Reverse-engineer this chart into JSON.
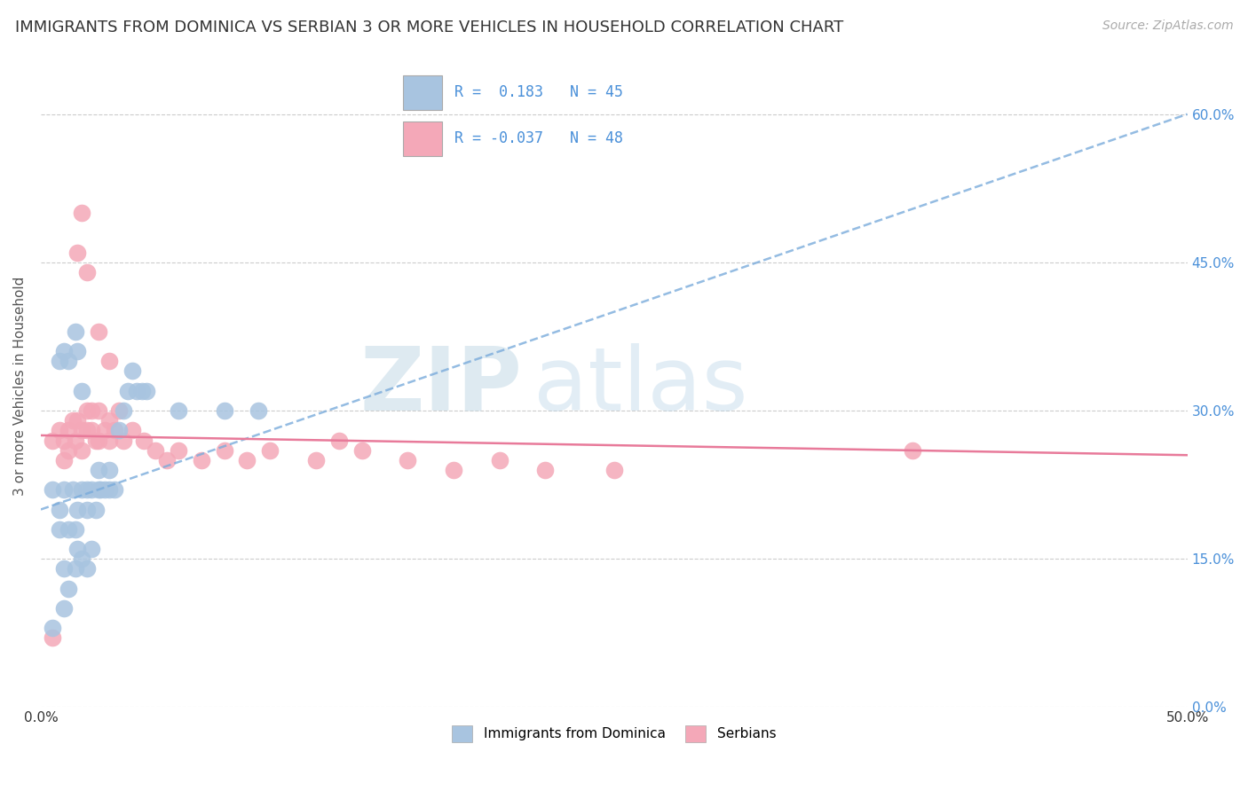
{
  "title": "IMMIGRANTS FROM DOMINICA VS SERBIAN 3 OR MORE VEHICLES IN HOUSEHOLD CORRELATION CHART",
  "source": "Source: ZipAtlas.com",
  "ylabel": "3 or more Vehicles in Household",
  "xmin": 0.0,
  "xmax": 0.5,
  "ymin": 0.0,
  "ymax": 0.65,
  "yticks": [
    0.0,
    0.15,
    0.3,
    0.45,
    0.6
  ],
  "ytick_labels_right": [
    "0.0%",
    "15.0%",
    "30.0%",
    "45.0%",
    "60.0%"
  ],
  "xticks": [
    0.0,
    0.5
  ],
  "xtick_labels": [
    "0.0%",
    "50.0%"
  ],
  "legend_label1": "Immigrants from Dominica",
  "legend_label2": "Serbians",
  "R1": 0.183,
  "N1": 45,
  "R2": -0.037,
  "N2": 48,
  "blue_color": "#a8c4e0",
  "pink_color": "#f4a8b8",
  "blue_line_color": "#7aabdb",
  "pink_line_color": "#e87a9a",
  "title_fontsize": 13,
  "watermark_zip": "ZIP",
  "watermark_atlas": "atlas",
  "blue_scatter_x": [
    0.005,
    0.008,
    0.008,
    0.01,
    0.01,
    0.01,
    0.012,
    0.012,
    0.014,
    0.015,
    0.015,
    0.016,
    0.016,
    0.018,
    0.018,
    0.02,
    0.02,
    0.02,
    0.022,
    0.022,
    0.024,
    0.025,
    0.025,
    0.026,
    0.028,
    0.03,
    0.03,
    0.032,
    0.034,
    0.036,
    0.038,
    0.04,
    0.042,
    0.044,
    0.046,
    0.008,
    0.01,
    0.012,
    0.015,
    0.016,
    0.018,
    0.06,
    0.08,
    0.095,
    0.005
  ],
  "blue_scatter_y": [
    0.22,
    0.2,
    0.18,
    0.22,
    0.14,
    0.1,
    0.12,
    0.18,
    0.22,
    0.14,
    0.18,
    0.2,
    0.16,
    0.15,
    0.22,
    0.2,
    0.22,
    0.14,
    0.16,
    0.22,
    0.2,
    0.22,
    0.24,
    0.22,
    0.22,
    0.24,
    0.22,
    0.22,
    0.28,
    0.3,
    0.32,
    0.34,
    0.32,
    0.32,
    0.32,
    0.35,
    0.36,
    0.35,
    0.38,
    0.36,
    0.32,
    0.3,
    0.3,
    0.3,
    0.08
  ],
  "pink_scatter_x": [
    0.005,
    0.008,
    0.01,
    0.01,
    0.012,
    0.012,
    0.014,
    0.015,
    0.016,
    0.018,
    0.018,
    0.02,
    0.02,
    0.022,
    0.022,
    0.024,
    0.025,
    0.025,
    0.028,
    0.03,
    0.03,
    0.032,
    0.034,
    0.036,
    0.04,
    0.045,
    0.05,
    0.055,
    0.06,
    0.07,
    0.08,
    0.09,
    0.1,
    0.12,
    0.14,
    0.16,
    0.18,
    0.2,
    0.22,
    0.25,
    0.016,
    0.018,
    0.02,
    0.025,
    0.03,
    0.13,
    0.38,
    0.005
  ],
  "pink_scatter_y": [
    0.27,
    0.28,
    0.25,
    0.27,
    0.26,
    0.28,
    0.29,
    0.27,
    0.29,
    0.28,
    0.26,
    0.3,
    0.28,
    0.3,
    0.28,
    0.27,
    0.3,
    0.27,
    0.28,
    0.29,
    0.27,
    0.28,
    0.3,
    0.27,
    0.28,
    0.27,
    0.26,
    0.25,
    0.26,
    0.25,
    0.26,
    0.25,
    0.26,
    0.25,
    0.26,
    0.25,
    0.24,
    0.25,
    0.24,
    0.24,
    0.46,
    0.5,
    0.44,
    0.38,
    0.35,
    0.27,
    0.26,
    0.07
  ],
  "blue_trend_x0": 0.0,
  "blue_trend_y0": 0.2,
  "blue_trend_x1": 0.5,
  "blue_trend_y1": 0.6,
  "pink_trend_x0": 0.0,
  "pink_trend_y0": 0.275,
  "pink_trend_x1": 0.5,
  "pink_trend_y1": 0.255
}
